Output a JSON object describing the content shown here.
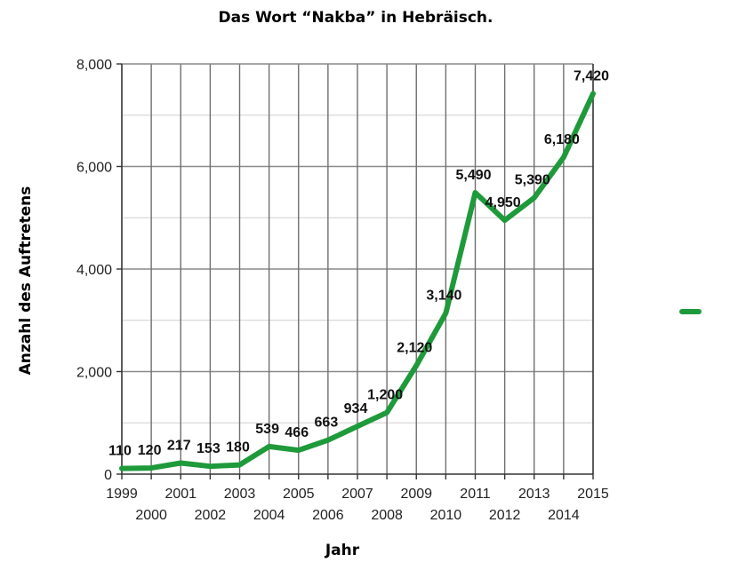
{
  "chart_data": {
    "type": "line",
    "title": "Das Wort “Nakba” in Hebräisch.",
    "xlabel": "Jahr",
    "ylabel": "Anzahl des Auftretens",
    "ylim": [
      0,
      8000
    ],
    "xlim": [
      1999,
      2015
    ],
    "grid": true,
    "legend": "right",
    "y_ticks": [
      "0",
      "2,000",
      "4,000",
      "6,000",
      "8,000"
    ],
    "x_ticks": [
      "1999",
      "2000",
      "2001",
      "2002",
      "2003",
      "2004",
      "2005",
      "2006",
      "2007",
      "2008",
      "2009",
      "2010",
      "2011",
      "2012",
      "2013",
      "2014",
      "2015"
    ],
    "series": [
      {
        "color": "#1f9a3b",
        "x": [
          1999,
          2000,
          2001,
          2002,
          2003,
          2004,
          2005,
          2006,
          2007,
          2008,
          2009,
          2010,
          2011,
          2012,
          2013,
          2014,
          2015
        ],
        "values": [
          110,
          120,
          217,
          153,
          180,
          539,
          466,
          663,
          934,
          1200,
          2120,
          3140,
          5490,
          4950,
          5390,
          6180,
          7420
        ],
        "labels": [
          "110",
          "120",
          "217",
          "153",
          "180",
          "539",
          "466",
          "663",
          "934",
          "1,200",
          "2,120",
          "3,140",
          "5,490",
          "4,950",
          "5,390",
          "6,180",
          "7,420"
        ]
      }
    ]
  }
}
